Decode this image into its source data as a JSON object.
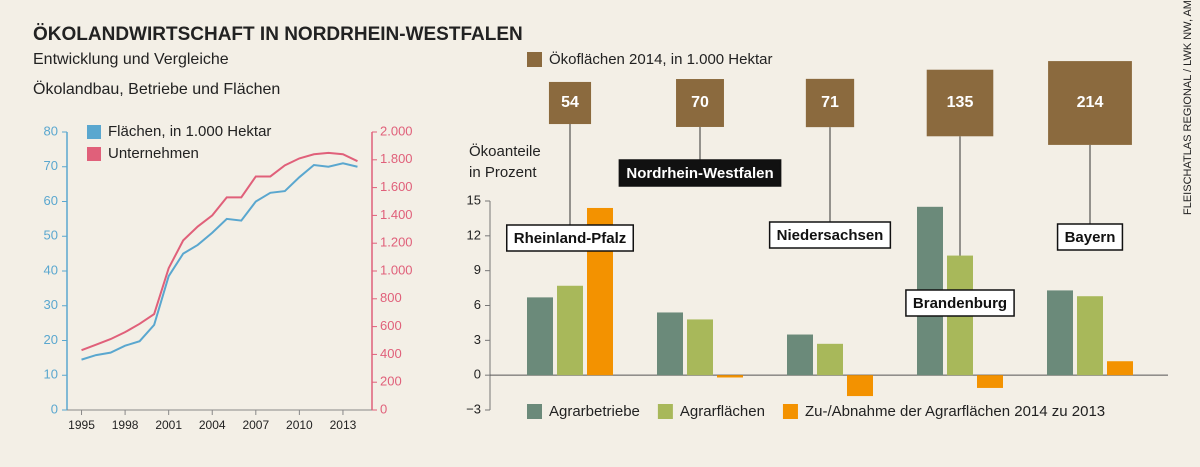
{
  "header": {
    "title": "ÖKOLANDWIRTSCHAFT IN NORDRHEIN-WESTFALEN",
    "subtitle": "Entwicklung und Vergleiche",
    "section_label": "Ökolandbau, Betriebe und Flächen",
    "source": "FLEISCHATLAS REGIONAL / LWK NW, AMI"
  },
  "chart_data": [
    {
      "type": "line",
      "x": [
        1995,
        1996,
        1997,
        1998,
        1999,
        2000,
        2001,
        2002,
        2003,
        2004,
        2005,
        2006,
        2007,
        2008,
        2009,
        2010,
        2011,
        2012,
        2013,
        2014
      ],
      "xlim": [
        1994,
        2015
      ],
      "xticks": [
        1995,
        1998,
        2001,
        2004,
        2007,
        2010,
        2013
      ],
      "ylim": [
        0,
        80
      ],
      "yticks": [
        0,
        10,
        20,
        30,
        40,
        50,
        60,
        70,
        80
      ],
      "y2lim": [
        0,
        2000
      ],
      "y2ticks": [
        0,
        200,
        400,
        600,
        800,
        {
          "value": 1000,
          "label": "1.000"
        },
        {
          "value": 1200,
          "label": "1.200"
        },
        {
          "value": 1400,
          "label": "1.400"
        },
        {
          "value": 1600,
          "label": "1.600"
        },
        {
          "value": 1800,
          "label": "1.800"
        },
        {
          "value": 2000,
          "label": "2.000"
        }
      ],
      "series": [
        {
          "name": "Flächen, in 1.000 Hektar",
          "color": "#5aa7cf",
          "values": [
            14.5,
            15.8,
            16.5,
            18.5,
            19.8,
            24.5,
            38.5,
            45,
            47.5,
            51,
            55,
            54.5,
            60,
            62.5,
            63,
            67,
            70.5,
            70,
            71,
            70
          ]
        },
        {
          "name": "Unternehmen",
          "color": "#e0607a",
          "axis": "y2",
          "values": [
            430,
            470,
            510,
            560,
            620,
            690,
            1020,
            1220,
            1320,
            1400,
            1530,
            1530,
            1680,
            1680,
            1760,
            1810,
            1840,
            1850,
            1840,
            1790
          ]
        }
      ]
    },
    {
      "type": "bar",
      "categories": [
        "Rheinland-Pfalz",
        "Nordrhein-Westfalen",
        "Niedersachsen",
        "Brandenburg",
        "Bayern"
      ],
      "highlight": 1,
      "areas_label": "Ökoflächen 2014, in 1.000 Hektar",
      "areas_color": "#8b6a3e",
      "areas": [
        54,
        70,
        71,
        135,
        214
      ],
      "ylabel": [
        "Ökoanteile",
        "in Prozent"
      ],
      "ylim": [
        -3,
        15
      ],
      "yticks": [
        {
          "value": -3,
          "label": "−3"
        },
        0,
        3,
        6,
        9,
        12,
        15
      ],
      "series": [
        {
          "name": "Agrarbetriebe",
          "color": "#6b8a7a",
          "values": [
            6.7,
            5.4,
            3.5,
            14.5,
            7.3
          ]
        },
        {
          "name": "Agrarflächen",
          "color": "#a8b85a",
          "values": [
            7.7,
            4.8,
            2.7,
            10.3,
            6.8
          ]
        },
        {
          "name": "Zu-/Abnahme der Agrarflächen 2014 zu 2013",
          "color": "#f39200",
          "values": [
            14.4,
            -0.2,
            -1.8,
            -1.1,
            1.2
          ]
        }
      ]
    }
  ]
}
